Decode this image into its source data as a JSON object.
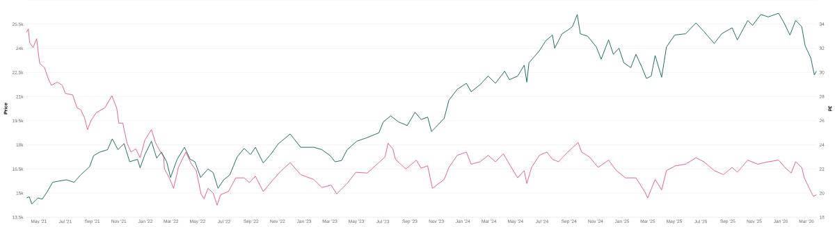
{
  "chart_data": {
    "type": "line",
    "ylabel": "Price",
    "y2label": "3d",
    "grid": "y",
    "xlim": [
      "2021-04-01",
      "2026-03-25"
    ],
    "xticks": [
      {
        "value": "2021-05-01",
        "label": "May '21"
      },
      {
        "value": "2021-07-01",
        "label": "Jul '21"
      },
      {
        "value": "2021-09-01",
        "label": "Sep '21"
      },
      {
        "value": "2021-11-01",
        "label": "Nov '21"
      },
      {
        "value": "2022-01-01",
        "label": "Jan '22"
      },
      {
        "value": "2022-03-01",
        "label": "Mar '22"
      },
      {
        "value": "2022-05-01",
        "label": "May '22"
      },
      {
        "value": "2022-07-01",
        "label": "Jul '22"
      },
      {
        "value": "2022-09-01",
        "label": "Sep '22"
      },
      {
        "value": "2022-11-01",
        "label": "Nov '22"
      },
      {
        "value": "2023-01-01",
        "label": "Jan '23"
      },
      {
        "value": "2023-03-01",
        "label": "Mar '23"
      },
      {
        "value": "2023-05-01",
        "label": "May '23"
      },
      {
        "value": "2023-07-01",
        "label": "Jul '23"
      },
      {
        "value": "2023-09-01",
        "label": "Sep '23"
      },
      {
        "value": "2023-11-01",
        "label": "Nov '23"
      },
      {
        "value": "2024-01-01",
        "label": "Jan '24"
      },
      {
        "value": "2024-03-01",
        "label": "Mar '24"
      },
      {
        "value": "2024-05-01",
        "label": "May '24"
      },
      {
        "value": "2024-07-01",
        "label": "Jul '24"
      },
      {
        "value": "2024-09-01",
        "label": "Sep '24"
      },
      {
        "value": "2024-11-01",
        "label": "Nov '24"
      },
      {
        "value": "2025-01-01",
        "label": "Jan '25"
      },
      {
        "value": "2025-03-01",
        "label": "Mar '25"
      },
      {
        "value": "2025-05-01",
        "label": "May '25"
      },
      {
        "value": "2025-07-01",
        "label": "Jul '25"
      },
      {
        "value": "2025-09-01",
        "label": "Sep '25"
      },
      {
        "value": "2025-11-01",
        "label": "Nov '25"
      },
      {
        "value": "2026-01-01",
        "label": "Jan '26"
      },
      {
        "value": "2026-03-01",
        "label": "Mar '26"
      }
    ],
    "ylim": [
      13500,
      27000
    ],
    "yticks": [
      {
        "value": 13500,
        "label": "13.5k"
      },
      {
        "value": 15000,
        "label": "15k"
      },
      {
        "value": 16500,
        "label": "16.5k"
      },
      {
        "value": 18000,
        "label": "18k"
      },
      {
        "value": 19500,
        "label": "19.5k"
      },
      {
        "value": 21000,
        "label": "21k"
      },
      {
        "value": 22500,
        "label": "22.5k"
      },
      {
        "value": 24000,
        "label": "24k"
      },
      {
        "value": 25500,
        "label": "25.5k"
      },
      {
        "value": 27000,
        "label": null
      }
    ],
    "y2lim": [
      18,
      36
    ],
    "y2ticks": [
      18,
      20,
      22,
      24,
      26,
      28,
      30,
      32,
      34,
      {
        "value": 36,
        "label": null
      }
    ],
    "series": [
      {
        "color": "#e4508a",
        "x": [
          "2021-04-03",
          "2021-04-07",
          "2021-04-10",
          "2021-04-18",
          "2021-04-26",
          "2021-05-03",
          "2021-05-14",
          "2021-05-23",
          "2021-05-30",
          "2021-06-13",
          "2021-06-24",
          "2021-07-01",
          "2021-07-18",
          "2021-07-28",
          "2021-08-05",
          "2021-08-14",
          "2021-08-21",
          "2021-08-29",
          "2021-09-10",
          "2021-09-30",
          "2021-10-16",
          "2021-10-27",
          "2021-11-01",
          "2021-11-10",
          "2021-11-20",
          "2021-11-29",
          "2021-12-10",
          "2021-12-20",
          "2021-12-31",
          "2022-01-15",
          "2022-01-24",
          "2022-02-01",
          "2022-02-12",
          "2022-02-14",
          "2022-02-25",
          "2022-03-07",
          "2022-03-18",
          "2022-04-04",
          "2022-04-17",
          "2022-04-28",
          "2022-05-09",
          "2022-05-16",
          "2022-05-25",
          "2022-06-06",
          "2022-06-15",
          "2022-06-23",
          "2022-07-11",
          "2022-07-28",
          "2022-08-16",
          "2022-08-28",
          "2022-09-11",
          "2022-09-29",
          "2022-10-16",
          "2022-11-06",
          "2022-11-30",
          "2022-12-24",
          "2023-01-23",
          "2023-02-11",
          "2023-03-04",
          "2023-03-17",
          "2023-04-10",
          "2023-04-30",
          "2023-05-26",
          "2023-06-22",
          "2023-07-06",
          "2023-07-13",
          "2023-07-24",
          "2023-07-30",
          "2023-08-23",
          "2023-09-16",
          "2023-09-27",
          "2023-10-12",
          "2023-10-23",
          "2023-11-19",
          "2023-11-30",
          "2023-12-19",
          "2024-01-09",
          "2024-01-20",
          "2024-02-10",
          "2024-02-28",
          "2024-03-16",
          "2024-04-03",
          "2024-04-17",
          "2024-05-06",
          "2024-05-21",
          "2024-05-27",
          "2024-06-07",
          "2024-06-25",
          "2024-07-12",
          "2024-07-25",
          "2024-08-08",
          "2024-08-29",
          "2024-09-22",
          "2024-09-30",
          "2024-10-18",
          "2024-11-07",
          "2024-12-01",
          "2024-12-19",
          "2025-01-09",
          "2025-02-02",
          "2025-02-22",
          "2025-03-01",
          "2025-03-18",
          "2025-04-02",
          "2025-04-13",
          "2025-05-04",
          "2025-05-27",
          "2025-06-20",
          "2025-07-08",
          "2025-08-01",
          "2025-08-22",
          "2025-09-11",
          "2025-09-23",
          "2025-10-17",
          "2025-11-09",
          "2025-12-03",
          "2025-12-27",
          "2026-01-14",
          "2026-01-25",
          "2026-02-04",
          "2026-02-18",
          "2026-02-24",
          "2026-03-11",
          "2026-03-17",
          "2026-03-24"
        ],
        "values": [
          25000,
          25200,
          24350,
          24050,
          24600,
          23050,
          22800,
          22100,
          21700,
          21900,
          21700,
          21200,
          21100,
          20300,
          20200,
          19700,
          18950,
          19500,
          20000,
          20300,
          21050,
          20300,
          19350,
          19350,
          18100,
          17550,
          17750,
          17200,
          18300,
          18950,
          18150,
          17750,
          17250,
          16500,
          15950,
          15300,
          16600,
          17550,
          16800,
          16400,
          14950,
          14650,
          15300,
          15000,
          14250,
          14900,
          15100,
          15950,
          15950,
          15650,
          16050,
          15100,
          15650,
          16300,
          16900,
          16150,
          15850,
          15350,
          15500,
          14950,
          15600,
          16300,
          16250,
          16900,
          17250,
          18100,
          17750,
          17100,
          16500,
          17050,
          16550,
          16700,
          15300,
          15850,
          16600,
          17350,
          17550,
          16800,
          16950,
          17350,
          16950,
          17450,
          16800,
          15950,
          16400,
          15600,
          16600,
          17350,
          17550,
          17100,
          16950,
          17550,
          18150,
          17550,
          17250,
          16600,
          17050,
          16400,
          15950,
          15950,
          15100,
          14700,
          15850,
          15200,
          16400,
          16700,
          16800,
          17200,
          16950,
          16400,
          16150,
          16600,
          16300,
          17050,
          16800,
          16950,
          17050,
          16500,
          16250,
          16950,
          16600,
          15950,
          15100,
          14800,
          14900
        ]
      },
      {
        "color": "#0e5c56",
        "axis": "y2",
        "x": [
          "2021-04-03",
          "2021-04-09",
          "2021-04-15",
          "2021-04-29",
          "2021-05-09",
          "2021-05-20",
          "2021-06-02",
          "2021-06-16",
          "2021-07-04",
          "2021-07-21",
          "2021-08-05",
          "2021-08-26",
          "2021-09-04",
          "2021-09-18",
          "2021-10-06",
          "2021-10-17",
          "2021-10-30",
          "2021-11-13",
          "2021-11-26",
          "2021-12-14",
          "2021-12-20",
          "2021-12-31",
          "2022-01-15",
          "2022-01-27",
          "2022-02-07",
          "2022-02-19",
          "2022-02-28",
          "2022-03-07",
          "2022-03-15",
          "2022-04-01",
          "2022-04-14",
          "2022-04-25",
          "2022-05-08",
          "2022-05-25",
          "2022-06-06",
          "2022-06-17",
          "2022-06-30",
          "2022-07-14",
          "2022-07-31",
          "2022-08-16",
          "2022-08-31",
          "2022-09-11",
          "2022-09-29",
          "2022-10-16",
          "2022-11-03",
          "2022-11-30",
          "2022-12-24",
          "2023-01-23",
          "2023-02-11",
          "2023-03-02",
          "2023-03-13",
          "2023-03-28",
          "2023-04-10",
          "2023-05-02",
          "2023-05-26",
          "2023-06-22",
          "2023-07-02",
          "2023-07-19",
          "2023-08-06",
          "2023-08-26",
          "2023-09-13",
          "2023-09-27",
          "2023-10-12",
          "2023-10-21",
          "2023-11-19",
          "2023-11-30",
          "2023-12-19",
          "2024-01-09",
          "2024-01-20",
          "2024-02-10",
          "2024-02-28",
          "2024-03-16",
          "2024-04-06",
          "2024-04-17",
          "2024-05-06",
          "2024-05-21",
          "2024-05-27",
          "2024-06-01",
          "2024-06-25",
          "2024-07-09",
          "2024-07-25",
          "2024-07-30",
          "2024-08-16",
          "2024-08-29",
          "2024-09-09",
          "2024-09-20",
          "2024-09-27",
          "2024-10-14",
          "2024-11-03",
          "2024-11-14",
          "2024-12-01",
          "2024-12-12",
          "2024-12-25",
          "2025-01-05",
          "2025-01-21",
          "2025-02-02",
          "2025-02-16",
          "2025-02-26",
          "2025-03-09",
          "2025-03-18",
          "2025-04-02",
          "2025-04-13",
          "2025-05-02",
          "2025-05-27",
          "2025-06-20",
          "2025-07-08",
          "2025-08-01",
          "2025-08-18",
          "2025-09-11",
          "2025-09-23",
          "2025-10-17",
          "2025-10-28",
          "2025-11-16",
          "2025-12-03",
          "2025-12-27",
          "2026-01-07",
          "2026-01-22",
          "2026-02-04",
          "2026-02-18",
          "2026-02-26",
          "2026-03-11",
          "2026-03-19",
          "2026-03-24"
        ],
        "values": [
          19.6,
          19.7,
          19.1,
          19.6,
          19.5,
          20.1,
          20.9,
          21.0,
          21.1,
          20.9,
          21.5,
          22.2,
          23.1,
          23.4,
          23.6,
          24.5,
          23.6,
          24.1,
          22.6,
          22.8,
          22.1,
          23.2,
          24.3,
          22.9,
          23.4,
          22.6,
          21.3,
          22.0,
          22.8,
          23.8,
          22.8,
          22.6,
          21.3,
          22.0,
          21.7,
          20.4,
          21.1,
          21.5,
          23.0,
          23.7,
          23.2,
          23.8,
          22.5,
          23.2,
          24.1,
          24.9,
          23.8,
          23.8,
          23.6,
          23.1,
          22.6,
          22.7,
          23.6,
          24.3,
          24.6,
          25.0,
          25.9,
          26.4,
          25.9,
          25.6,
          26.7,
          26.1,
          26.3,
          25.1,
          26.2,
          27.7,
          28.6,
          29.1,
          28.4,
          29.0,
          29.7,
          29.1,
          30.1,
          29.4,
          29.7,
          30.6,
          29.2,
          30.8,
          31.8,
          32.6,
          33.1,
          32.0,
          33.2,
          33.5,
          33.8,
          34.8,
          33.2,
          33.0,
          32.1,
          31.1,
          32.7,
          31.5,
          32.0,
          30.8,
          30.4,
          31.5,
          30.4,
          29.5,
          29.7,
          31.4,
          29.6,
          32.1,
          33.1,
          33.2,
          34.1,
          33.4,
          32.4,
          33.2,
          33.7,
          32.7,
          34.3,
          33.9,
          34.8,
          34.6,
          34.9,
          34.2,
          33.1,
          34.3,
          33.8,
          32.2,
          31.2,
          29.8,
          30.1
        ]
      }
    ]
  }
}
